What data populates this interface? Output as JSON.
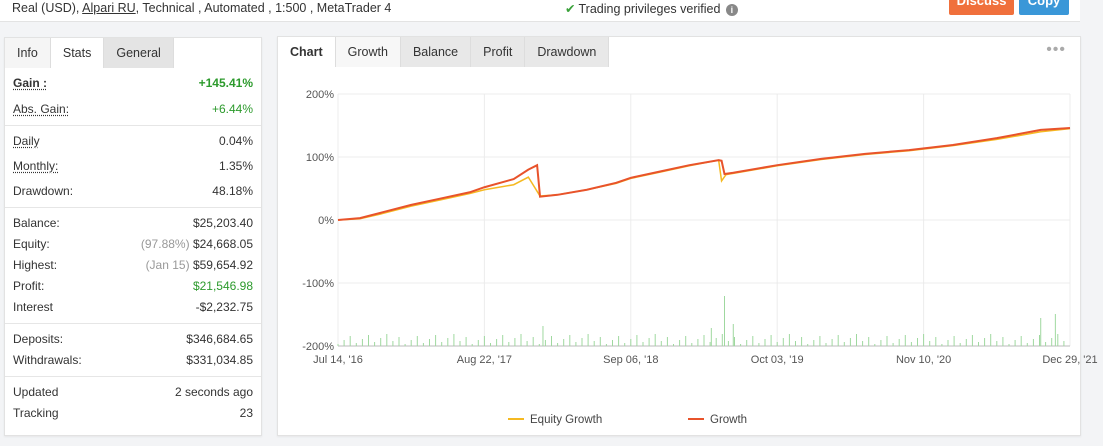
{
  "topbar": {
    "account_prefix": "Real (USD),",
    "broker": "Alpari RU",
    "account_suffix": ", Technical , Automated , 1:500 , MetaTrader 4",
    "verified_text": "Trading privileges verified",
    "discuss_label": "Discuss",
    "copy_label": "Copy"
  },
  "left_tabs": [
    "Info",
    "Stats",
    "General"
  ],
  "stats": {
    "gain": {
      "label": "Gain :",
      "value": "+145.41%"
    },
    "abs_gain": {
      "label": "Abs. Gain:",
      "value": "+6.44%"
    },
    "daily": {
      "label": "Daily",
      "value": "0.04%"
    },
    "monthly": {
      "label": "Monthly:",
      "value": "1.35%"
    },
    "drawdown": {
      "label": "Drawdown:",
      "value": "48.18%"
    },
    "balance": {
      "label": "Balance:",
      "value": "$25,203.40"
    },
    "equity": {
      "label": "Equity:",
      "note": "(97.88%)",
      "value": "$24,668.05"
    },
    "highest": {
      "label": "Highest:",
      "note": "(Jan 15)",
      "value": "$59,654.92"
    },
    "profit": {
      "label": "Profit:",
      "value": "$21,546.98"
    },
    "interest": {
      "label": "Interest",
      "value": "-$2,232.75"
    },
    "deposits": {
      "label": "Deposits:",
      "value": "$346,684.65"
    },
    "withdrawals": {
      "label": "Withdrawals:",
      "value": "$331,034.85"
    },
    "updated": {
      "label": "Updated",
      "value": "2 seconds ago"
    },
    "tracking": {
      "label": "Tracking",
      "value": "23"
    }
  },
  "chart_tabs": [
    "Chart",
    "Growth",
    "Balance",
    "Profit",
    "Drawdown"
  ],
  "colors": {
    "growth": "#e8532b",
    "equity": "#f5b921",
    "bars": "#9fd89f",
    "positive": "#2c9a2c"
  },
  "chart_data": {
    "type": "line",
    "y_tick_labels": [
      "200%",
      "100%",
      "0%",
      "-100%",
      "-200%"
    ],
    "y_ticks": [
      200,
      100,
      0,
      -100,
      -200
    ],
    "ylim": [
      -200,
      200
    ],
    "x_tick_labels": [
      "Jul 14, '16",
      "Aug 22, '17",
      "Sep 06, '18",
      "Oct 03, '19",
      "Nov 10, '20",
      "Dec 29, '21"
    ],
    "x_tick_positions": [
      0,
      1,
      2,
      3,
      4,
      5
    ],
    "grid": true,
    "legend": "bottom",
    "series": [
      {
        "name": "Equity Growth",
        "x": [
          0,
          0.15,
          0.3,
          0.5,
          0.7,
          0.9,
          1.0,
          1.2,
          1.3,
          1.38,
          1.5,
          1.7,
          1.9,
          2.0,
          2.2,
          2.4,
          2.6,
          2.62,
          2.65,
          2.7,
          3.0,
          3.3,
          3.6,
          3.9,
          4.2,
          4.5,
          4.8,
          5.0
        ],
        "y": [
          0,
          2,
          10,
          22,
          32,
          42,
          48,
          56,
          68,
          38,
          40,
          48,
          58,
          66,
          76,
          86,
          95,
          62,
          72,
          74,
          86,
          96,
          104,
          110,
          118,
          128,
          140,
          145
        ]
      },
      {
        "name": "Growth",
        "x": [
          0,
          0.15,
          0.3,
          0.5,
          0.7,
          0.9,
          1.0,
          1.2,
          1.3,
          1.36,
          1.38,
          1.5,
          1.7,
          1.9,
          2.0,
          2.2,
          2.4,
          2.6,
          2.62,
          2.64,
          2.7,
          3.0,
          3.3,
          3.6,
          3.9,
          4.2,
          4.5,
          4.8,
          5.0
        ],
        "y": [
          0,
          3,
          12,
          24,
          34,
          44,
          52,
          65,
          80,
          87,
          37,
          40,
          48,
          59,
          67,
          77,
          87,
          95,
          94,
          73,
          75,
          87,
          97,
          105,
          111,
          119,
          130,
          143,
          146
        ]
      }
    ]
  }
}
